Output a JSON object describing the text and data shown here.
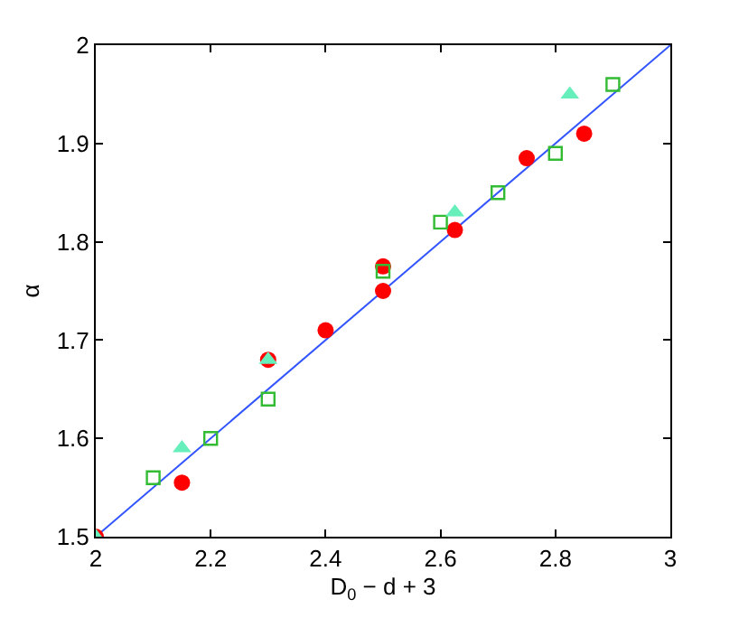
{
  "chart_data": {
    "type": "scatter",
    "xlabel": "D$_{0}$ − d + 3",
    "ylabel": "α",
    "xlim": [
      2,
      3
    ],
    "xticks": [
      2,
      2.2,
      2.4,
      2.6,
      2.8,
      3
    ],
    "ylim": [
      1.5,
      2
    ],
    "yticks": [
      1.5,
      1.6,
      1.7,
      1.8,
      1.9,
      2
    ],
    "series": [
      {
        "type": "line",
        "color": "#3355ff",
        "marker": "none",
        "line_style": "solid",
        "x": [
          2,
          3
        ],
        "values": [
          1.5,
          2
        ]
      },
      {
        "color": "#ff0000",
        "marker": "circle",
        "x": [
          2.0,
          2.15,
          2.3,
          2.4,
          2.5,
          2.5,
          2.625,
          2.75,
          2.85
        ],
        "values": [
          1.5,
          1.555,
          1.68,
          1.71,
          1.75,
          1.775,
          1.812,
          1.885,
          1.91
        ]
      },
      {
        "color": "#33bb33",
        "marker": "square",
        "x": [
          2.1,
          2.2,
          2.3,
          2.5,
          2.6,
          2.7,
          2.8,
          2.9
        ],
        "values": [
          1.56,
          1.6,
          1.64,
          1.77,
          1.82,
          1.85,
          1.89,
          1.96
        ]
      },
      {
        "color": "#66eebb",
        "marker": "triangle",
        "x": [
          2.0,
          2.15,
          2.3,
          2.625,
          2.825
        ],
        "values": [
          1.5,
          1.59,
          1.68,
          1.83,
          1.95
        ]
      }
    ]
  }
}
